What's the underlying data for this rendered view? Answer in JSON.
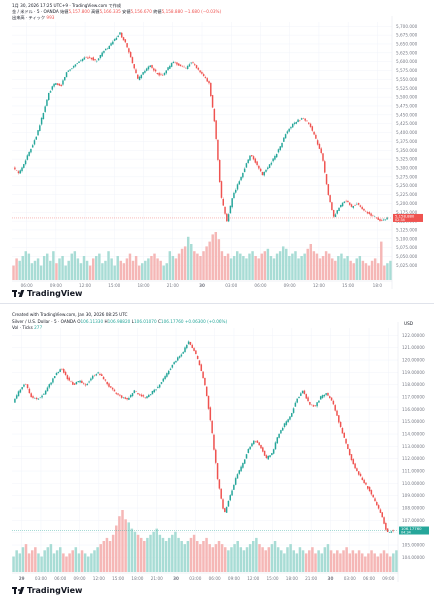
{
  "panels": [
    {
      "meta": "1月 30, 2026 17:25 UTC+9 · TradingView.com で作成",
      "symbol": "金 / 米ドル · 5 · OANDA",
      "ohlc": {
        "o_label": "始値",
        "o": "5,157.800",
        "h_label": "高値",
        "h": "5,166.335",
        "l_label": "安値",
        "l": "5,156.670",
        "c_label": "終値",
        "c": "5,158.880",
        "chg": "−1.680 (−0.03%)"
      },
      "vol_label": "出来高 · ティック",
      "vol_value": "993",
      "last_price": "5,158.880",
      "last_time": "02:34",
      "brand": "TradingView",
      "chart_data": {
        "type": "candlestick",
        "y_ticks": [
          "5,700.000",
          "5,675.000",
          "5,650.000",
          "5,625.000",
          "5,600.000",
          "5,575.000",
          "5,550.000",
          "5,525.000",
          "5,500.000",
          "5,475.000",
          "5,450.000",
          "5,425.000",
          "5,400.000",
          "5,375.000",
          "5,350.000",
          "5,325.000",
          "5,300.000",
          "5,275.000",
          "5,250.000",
          "5,225.000",
          "5,200.000",
          "5,175.000",
          "5,150.000",
          "5,125.000",
          "5,100.000",
          "5,075.000",
          "5,050.000",
          "5,025.000"
        ],
        "ylim": [
          5012,
          5712
        ],
        "x_ticks": [
          "06:00",
          "09:00",
          "12:00",
          "15:00",
          "18:00",
          "21:00",
          "30",
          "03:00",
          "06:00",
          "09:00",
          "12:00",
          "15:00",
          "18:0"
        ],
        "path": [
          [
            0,
            5300
          ],
          [
            2,
            5285
          ],
          [
            4,
            5320
          ],
          [
            6,
            5355
          ],
          [
            8,
            5395
          ],
          [
            10,
            5450
          ],
          [
            12,
            5510
          ],
          [
            14,
            5540
          ],
          [
            16,
            5530
          ],
          [
            18,
            5570
          ],
          [
            20,
            5585
          ],
          [
            22,
            5600
          ],
          [
            24,
            5610
          ],
          [
            26,
            5612
          ],
          [
            28,
            5600
          ],
          [
            30,
            5625
          ],
          [
            32,
            5640
          ],
          [
            34,
            5660
          ],
          [
            36,
            5680
          ],
          [
            38,
            5650
          ],
          [
            40,
            5600
          ],
          [
            42,
            5550
          ],
          [
            44,
            5570
          ],
          [
            46,
            5590
          ],
          [
            48,
            5570
          ],
          [
            50,
            5560
          ],
          [
            52,
            5580
          ],
          [
            54,
            5600
          ],
          [
            56,
            5590
          ],
          [
            58,
            5580
          ],
          [
            60,
            5600
          ],
          [
            62,
            5580
          ],
          [
            64,
            5560
          ],
          [
            66,
            5540
          ],
          [
            68,
            5420
          ],
          [
            70,
            5220
          ],
          [
            72,
            5150
          ],
          [
            74,
            5220
          ],
          [
            76,
            5260
          ],
          [
            78,
            5300
          ],
          [
            80,
            5340
          ],
          [
            82,
            5310
          ],
          [
            84,
            5280
          ],
          [
            86,
            5305
          ],
          [
            88,
            5330
          ],
          [
            90,
            5360
          ],
          [
            92,
            5400
          ],
          [
            94,
            5420
          ],
          [
            96,
            5435
          ],
          [
            98,
            5440
          ],
          [
            100,
            5420
          ],
          [
            102,
            5380
          ],
          [
            104,
            5340
          ],
          [
            106,
            5230
          ],
          [
            108,
            5160
          ],
          [
            110,
            5190
          ],
          [
            112,
            5210
          ],
          [
            114,
            5190
          ],
          [
            116,
            5200
          ],
          [
            118,
            5180
          ],
          [
            120,
            5170
          ],
          [
            122,
            5160
          ],
          [
            124,
            5150
          ],
          [
            126,
            5158
          ]
        ],
        "volume": [
          0.3,
          0.45,
          0.4,
          0.5,
          0.6,
          0.55,
          0.35,
          0.4,
          0.45,
          0.3,
          0.5,
          0.55,
          0.4,
          0.6,
          0.35,
          0.45,
          0.5,
          0.3,
          0.4,
          0.55,
          0.6,
          0.45,
          0.35,
          0.5,
          0.4,
          0.3,
          0.45,
          0.5,
          0.55,
          0.35,
          0.4,
          0.6,
          0.45,
          0.3,
          0.5,
          0.4,
          0.35,
          0.45,
          0.55,
          0.4,
          0.5,
          0.3,
          0.35,
          0.4,
          0.45,
          0.5,
          0.55,
          0.45,
          0.4,
          0.3,
          0.35,
          0.6,
          0.5,
          0.45,
          0.55,
          0.65,
          0.7,
          0.9,
          0.75,
          0.6,
          0.55,
          0.5,
          0.6,
          0.7,
          0.8,
          0.95,
          1.0,
          0.85,
          0.6,
          0.5,
          0.55,
          0.45,
          0.5,
          0.6,
          0.55,
          0.5,
          0.45,
          0.55,
          0.6,
          0.5,
          0.45,
          0.55,
          0.6,
          0.65,
          0.5,
          0.45,
          0.55,
          0.6,
          0.7,
          0.65,
          0.5,
          0.55,
          0.6,
          0.45,
          0.5,
          0.55,
          0.65,
          0.75,
          0.6,
          0.55,
          0.45,
          0.5,
          0.6,
          0.55,
          0.45,
          0.4,
          0.5,
          0.55,
          0.45,
          0.5,
          0.4,
          0.35,
          0.45,
          0.5,
          0.4,
          0.35,
          0.3,
          0.4,
          0.45,
          0.35,
          0.8,
          0.3,
          0.35,
          0.4
        ]
      }
    },
    {
      "meta": "Created with TradingView.com, Jan 30, 2026 08:25 UTC",
      "symbol": "Silver / U.S. Dollar · 5 · OANDA",
      "ohlc": {
        "o_label": "O",
        "o": "106.11330",
        "h_label": "H",
        "h": "106.98820",
        "l_label": "L",
        "l": "106.01070",
        "c_label": "C",
        "c": "106.17760",
        "chg": "+0.06300 (+0.06%)"
      },
      "vol_label": "Vol · Ticks",
      "vol_value": "277",
      "currency": "USD",
      "last_price": "106.17760",
      "last_time": "04:34",
      "brand": "TradingView",
      "chart_data": {
        "type": "candlestick",
        "y_ticks": [
          "122.00000",
          "121.00000",
          "120.00000",
          "119.00000",
          "118.00000",
          "117.00000",
          "116.00000",
          "115.00000",
          "114.00000",
          "113.00000",
          "112.00000",
          "111.00000",
          "110.00000",
          "109.00000",
          "108.00000",
          "107.00000",
          "106.00000",
          "105.00000",
          "104.00000"
        ],
        "ylim": [
          103.3,
          122.6
        ],
        "x_ticks": [
          "29",
          "03:00",
          "06:00",
          "09:00",
          "12:00",
          "15:00",
          "18:00",
          "21:00",
          "30",
          "03:00",
          "06:00",
          "09:00",
          "12:00",
          "15:00",
          "18:00",
          "21:00",
          "30",
          "03:00",
          "06:00",
          "09:00"
        ],
        "path": [
          [
            0,
            116.5
          ],
          [
            2,
            117.5
          ],
          [
            4,
            118.2
          ],
          [
            6,
            117.0
          ],
          [
            8,
            116.8
          ],
          [
            10,
            117.2
          ],
          [
            12,
            118.0
          ],
          [
            14,
            118.8
          ],
          [
            16,
            119.3
          ],
          [
            18,
            118.5
          ],
          [
            20,
            118.0
          ],
          [
            22,
            118.3
          ],
          [
            24,
            117.9
          ],
          [
            26,
            118.6
          ],
          [
            28,
            119.0
          ],
          [
            30,
            118.5
          ],
          [
            32,
            117.8
          ],
          [
            34,
            117.3
          ],
          [
            36,
            117.0
          ],
          [
            38,
            116.8
          ],
          [
            40,
            117.5
          ],
          [
            42,
            117.2
          ],
          [
            44,
            116.9
          ],
          [
            46,
            117.4
          ],
          [
            48,
            117.8
          ],
          [
            50,
            118.5
          ],
          [
            52,
            119.3
          ],
          [
            54,
            120.0
          ],
          [
            56,
            120.5
          ],
          [
            58,
            121.5
          ],
          [
            60,
            120.8
          ],
          [
            62,
            119.5
          ],
          [
            64,
            117.5
          ],
          [
            66,
            114.0
          ],
          [
            68,
            110.0
          ],
          [
            70,
            107.5
          ],
          [
            72,
            109.0
          ],
          [
            74,
            110.5
          ],
          [
            76,
            111.5
          ],
          [
            78,
            112.8
          ],
          [
            80,
            113.5
          ],
          [
            82,
            113.0
          ],
          [
            84,
            112.0
          ],
          [
            86,
            112.5
          ],
          [
            88,
            114.0
          ],
          [
            90,
            114.8
          ],
          [
            92,
            115.5
          ],
          [
            94,
            116.8
          ],
          [
            96,
            117.5
          ],
          [
            98,
            116.5
          ],
          [
            100,
            116.2
          ],
          [
            102,
            117.0
          ],
          [
            104,
            117.3
          ],
          [
            106,
            116.5
          ],
          [
            108,
            115.0
          ],
          [
            110,
            113.5
          ],
          [
            112,
            112.0
          ],
          [
            114,
            111.0
          ],
          [
            116,
            110.2
          ],
          [
            118,
            109.5
          ],
          [
            120,
            108.5
          ],
          [
            122,
            107.5
          ],
          [
            124,
            106.0
          ],
          [
            126,
            106.2
          ]
        ],
        "volume": [
          0.25,
          0.35,
          0.3,
          0.4,
          0.45,
          0.3,
          0.35,
          0.4,
          0.3,
          0.25,
          0.35,
          0.4,
          0.45,
          0.3,
          0.35,
          0.4,
          0.3,
          0.25,
          0.3,
          0.35,
          0.4,
          0.3,
          0.35,
          0.3,
          0.25,
          0.3,
          0.35,
          0.4,
          0.45,
          0.5,
          0.55,
          0.5,
          0.6,
          0.75,
          0.9,
          1.0,
          0.85,
          0.8,
          0.7,
          0.65,
          0.6,
          0.55,
          0.5,
          0.55,
          0.6,
          0.65,
          0.7,
          0.6,
          0.55,
          0.5,
          0.55,
          0.6,
          0.65,
          0.55,
          0.5,
          0.45,
          0.5,
          0.55,
          0.6,
          0.5,
          0.45,
          0.5,
          0.55,
          0.45,
          0.4,
          0.45,
          0.5,
          0.45,
          0.4,
          0.35,
          0.4,
          0.45,
          0.5,
          0.4,
          0.35,
          0.4,
          0.45,
          0.5,
          0.55,
          0.45,
          0.4,
          0.35,
          0.4,
          0.45,
          0.5,
          0.4,
          0.35,
          0.3,
          0.4,
          0.45,
          0.35,
          0.3,
          0.4,
          0.35,
          0.3,
          0.35,
          0.4,
          0.3,
          0.35,
          0.3,
          0.4,
          0.45,
          0.35,
          0.3,
          0.35,
          0.3,
          0.35,
          0.4,
          0.3,
          0.35,
          0.3,
          0.35,
          0.3,
          0.25,
          0.3,
          0.35,
          0.3,
          0.25,
          0.3,
          0.35,
          0.3,
          0.25,
          0.3,
          0.35
        ]
      }
    }
  ],
  "colors": {
    "up": "#26a69a",
    "down": "#ef5350",
    "vol_up": "#a8dcd5",
    "vol_down": "#f5b7b6",
    "grid": "#f0f3fa",
    "text": "#131722",
    "axis_text": "#787b86",
    "price_line": "#ef5350"
  }
}
